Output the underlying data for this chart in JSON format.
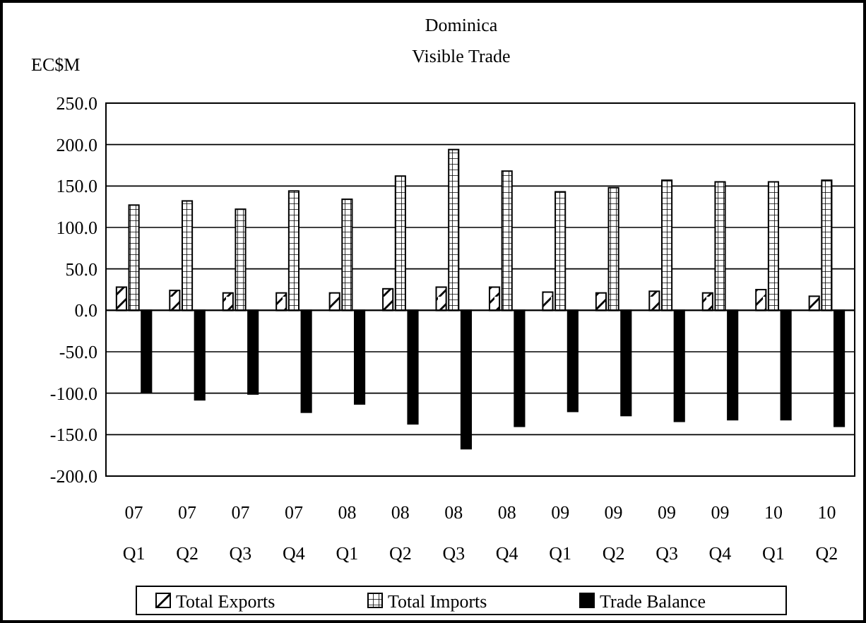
{
  "chart_data": {
    "type": "bar",
    "title": "Dominica",
    "subtitle": "Visible Trade",
    "ylabel": "EC$M",
    "categories": [
      "07 Q1",
      "07 Q2",
      "07 Q3",
      "07 Q4",
      "08 Q1",
      "08 Q2",
      "08 Q3",
      "08 Q4",
      "09 Q1",
      "09 Q2",
      "09 Q3",
      "09 Q4",
      "10 Q1",
      "10 Q2"
    ],
    "series": [
      {
        "name": "Total Exports",
        "color": "#000000",
        "values": [
          28,
          24,
          21,
          21,
          21,
          26,
          28,
          28,
          22,
          21,
          23,
          21,
          25,
          17
        ]
      },
      {
        "name": "Total Imports",
        "color": "#000000",
        "values": [
          127,
          132,
          122,
          144,
          134,
          162,
          194,
          168,
          143,
          148,
          157,
          155,
          155,
          157
        ]
      },
      {
        "name": "Trade Balance",
        "color": "#000000",
        "values": [
          -99,
          -108,
          -101,
          -123,
          -113,
          -137,
          -167,
          -140,
          -122,
          -127,
          -134,
          -132,
          -132,
          -140
        ]
      }
    ],
    "ylim": [
      -200,
      250
    ],
    "yticks": [
      {
        "value": -200,
        "label": "-200.0"
      },
      {
        "value": -150,
        "label": "-150.0"
      },
      {
        "value": -100,
        "label": "-100.0"
      },
      {
        "value": -50,
        "label": "-50.0"
      },
      {
        "value": 0,
        "label": "0.0"
      },
      {
        "value": 50,
        "label": "50.0"
      },
      {
        "value": 100,
        "label": "100.0"
      },
      {
        "value": 150,
        "label": "150.0"
      },
      {
        "value": 200,
        "label": "200.0"
      },
      {
        "value": 250,
        "label": "250.0"
      }
    ],
    "grid": "y",
    "legend": "bottom"
  }
}
